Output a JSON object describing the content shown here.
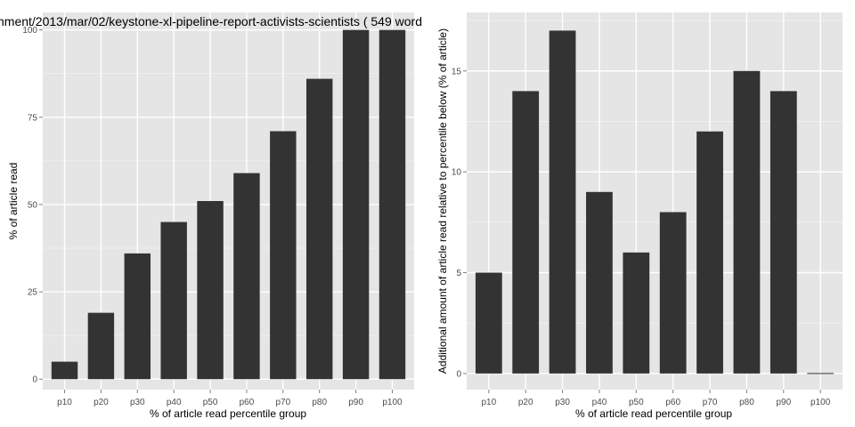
{
  "title": "nment/2013/mar/02/keystone-xl-pipeline-report-activists-scientists ( 549 word",
  "colors": {
    "panel": "#e5e5e5",
    "grid_major": "#ffffff",
    "grid_minor": "#f2f2f2",
    "bar": "#333333",
    "tick_text": "#4d4d4d"
  },
  "chart_data": [
    {
      "type": "bar",
      "categories": [
        "p10",
        "p20",
        "p30",
        "p40",
        "p50",
        "p60",
        "p70",
        "p80",
        "p90",
        "p100"
      ],
      "values": [
        5,
        19,
        36,
        45,
        51,
        59,
        71,
        86,
        100,
        100
      ],
      "title": "nment/2013/mar/02/keystone-xl-pipeline-report-activists-scientists ( 549 word",
      "xlabel": "% of article read percentile group",
      "ylabel": "% of article read",
      "ylim": [
        -3,
        105
      ],
      "yticks": [
        0,
        25,
        50,
        75,
        100
      ],
      "grid": true
    },
    {
      "type": "bar",
      "categories": [
        "p10",
        "p20",
        "p30",
        "p40",
        "p50",
        "p60",
        "p70",
        "p80",
        "p90",
        "p100"
      ],
      "values": [
        5,
        14,
        17,
        9,
        6,
        8,
        12,
        15,
        14,
        0
      ],
      "title": "",
      "xlabel": "% of article read percentile group",
      "ylabel": "Additional amount of article read relative to percentile below (% of article)",
      "ylim": [
        -0.8,
        17.9
      ],
      "yticks": [
        0,
        5,
        10,
        15
      ],
      "grid": true
    }
  ]
}
